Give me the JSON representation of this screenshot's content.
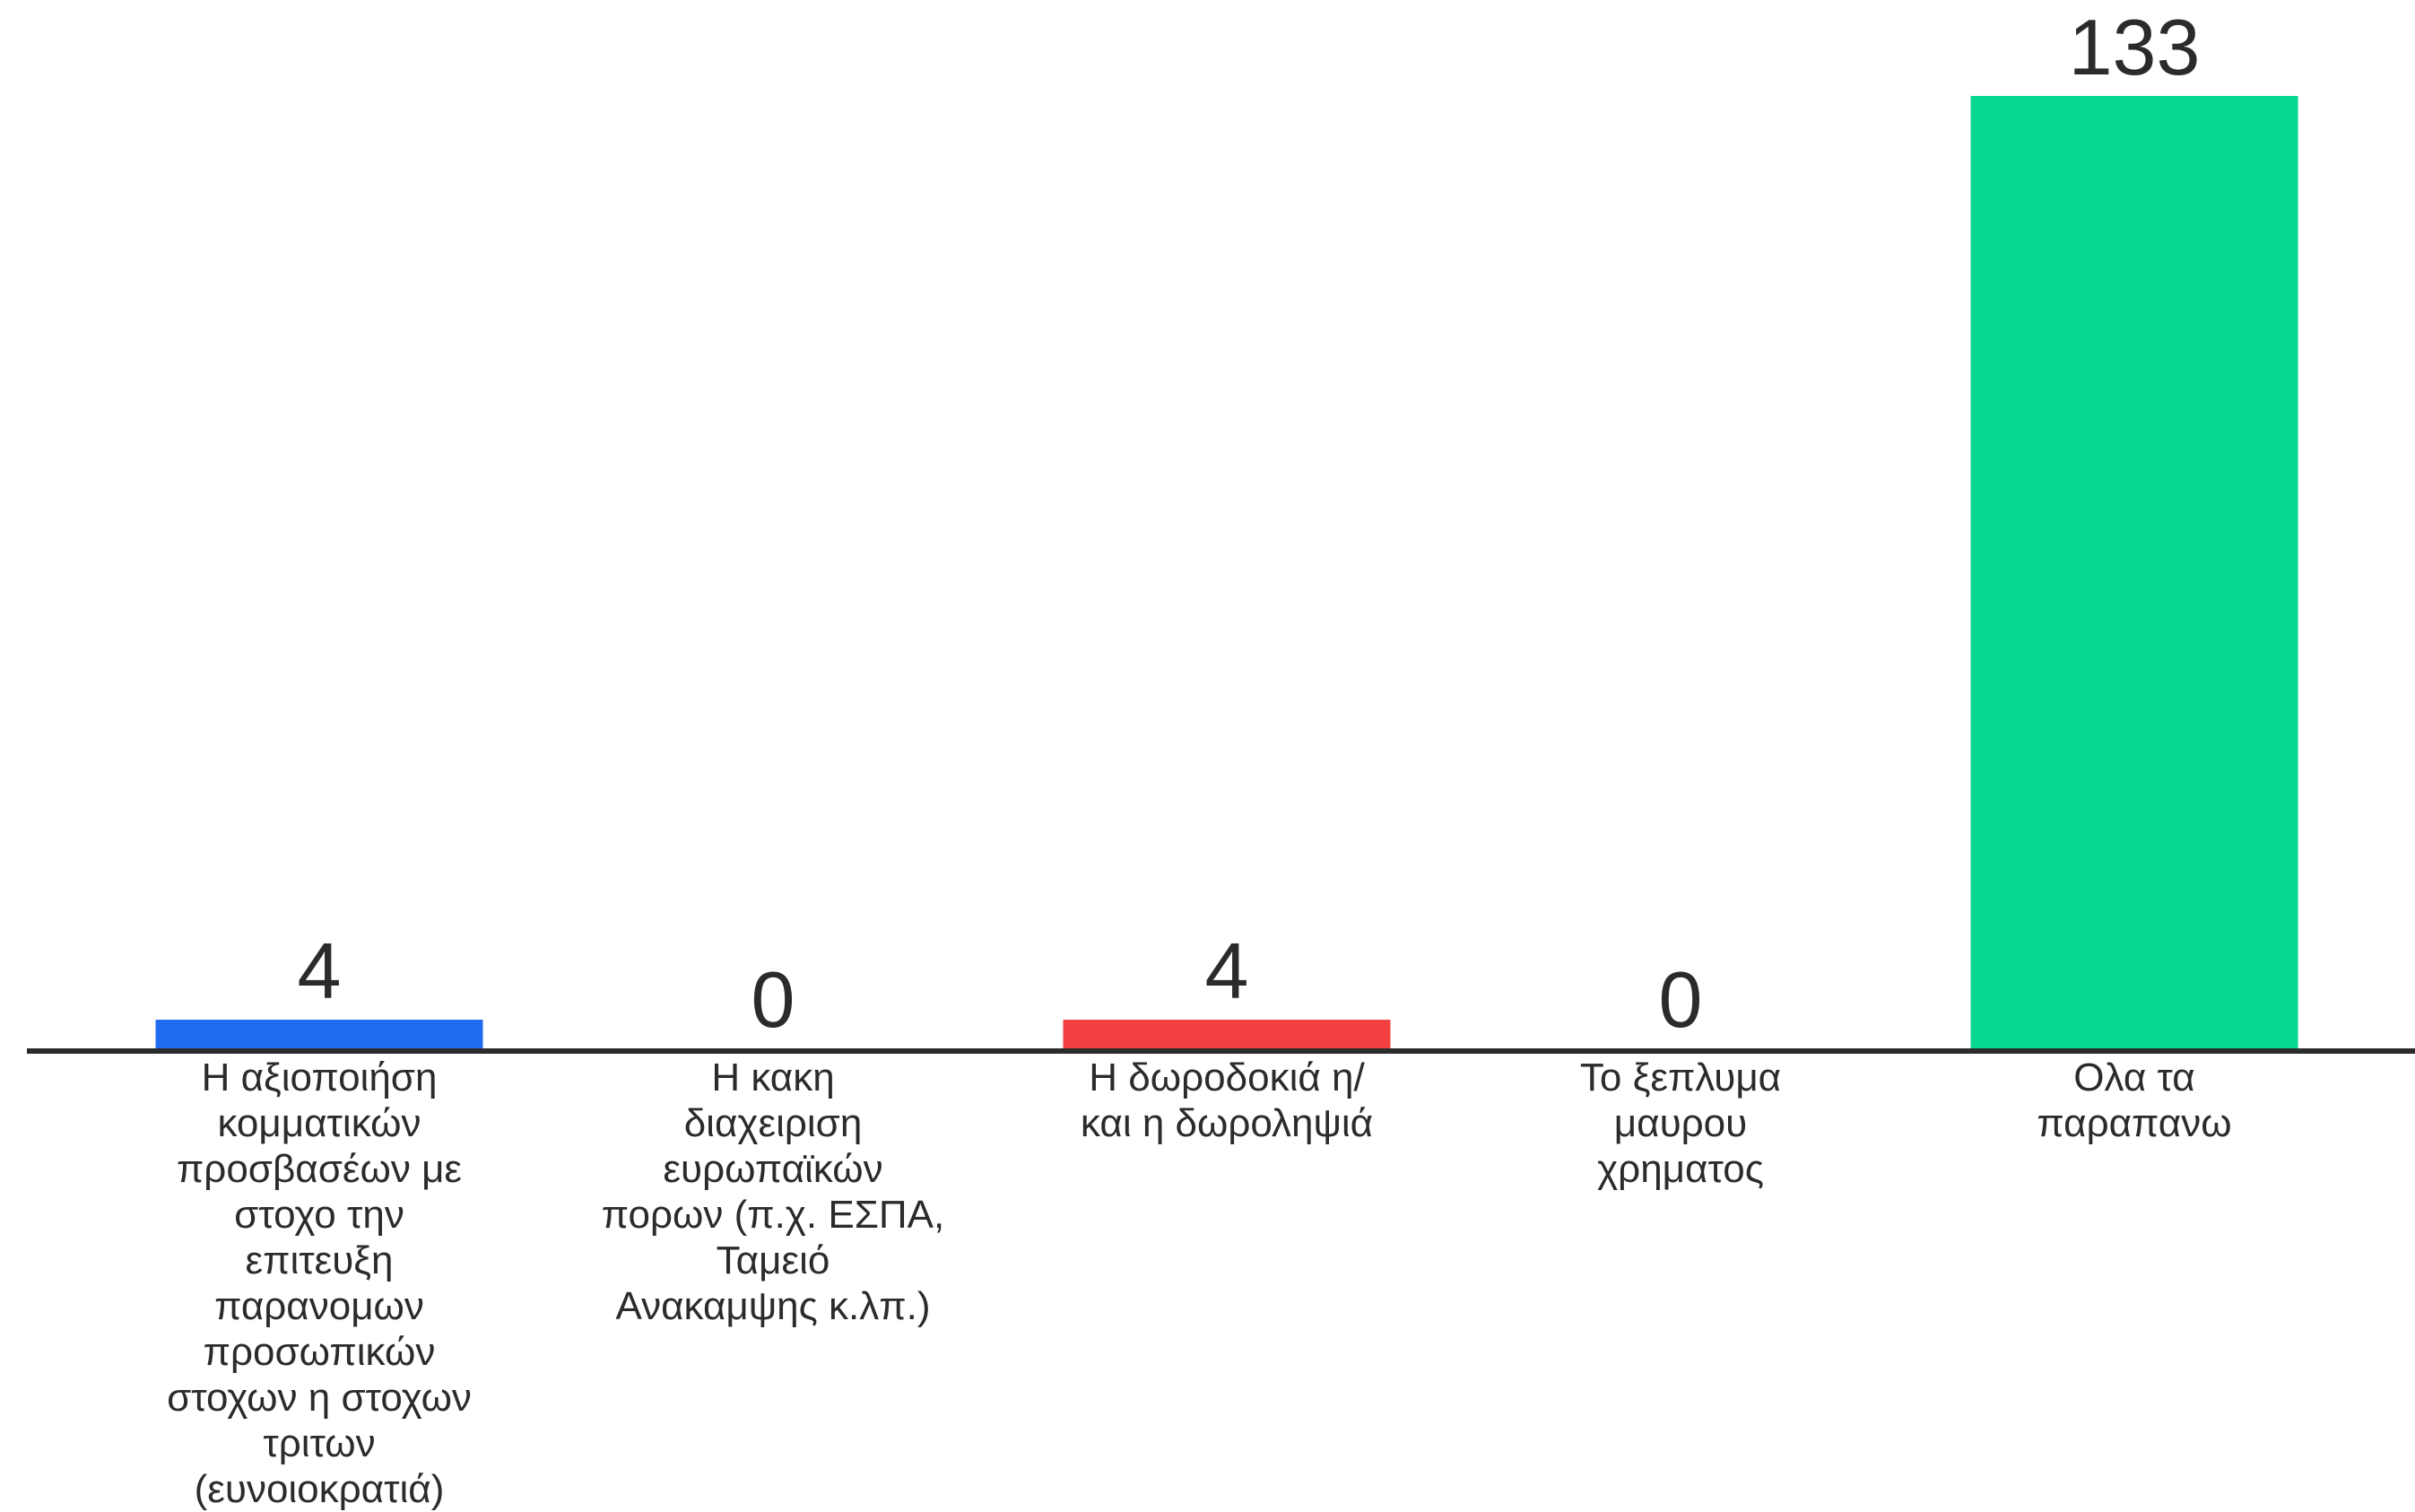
{
  "chart_data": {
    "type": "bar",
    "categories": [
      "Η αξιοποιήση κομματικών προσβασέων με στοχο την επιτευξη παρανομων προσωπικών στοχων η στοχων τριτων (ευνοιοκρατιά)",
      "Η κακη διαχειριση ευρωπαϊκών πορων (π.χ. ΕΣΠΑ, Ταμειό Ανακαμψης κ.λπ.)",
      "Η δωροδοκιά η/ και η δωροληψιά",
      "Το ξεπλυμα μαυρου χρηματος",
      "Ολα τα παραπανω"
    ],
    "category_lines": [
      [
        "Η αξιοποιήση",
        "κομματικών",
        "προσβασέων με",
        "στοχο την",
        "επιτευξη",
        "παρανομων",
        "προσωπικών",
        "στοχων η στοχων",
        "τριτων",
        "(ευνοιοκρατιά)"
      ],
      [
        "Η κακη",
        "διαχειριση",
        "ευρωπαϊκών",
        "πορων (π.χ. ΕΣΠΑ,",
        "Ταμειό",
        "Ανακαμψης κ.λπ.)"
      ],
      [
        "Η δωροδοκιά η/",
        "και η δωροληψιά"
      ],
      [
        "Το ξεπλυμα",
        "μαυρου",
        "χρηματος"
      ],
      [
        "Ολα τα",
        "παραπανω"
      ]
    ],
    "values": [
      4,
      0,
      4,
      0,
      133
    ],
    "value_labels": [
      "4",
      "0",
      "4",
      "0",
      "133"
    ],
    "colors": [
      "#1f6cf0",
      "#1f6cf0",
      "#f24040",
      "#f24040",
      "#05d690"
    ],
    "ylim": [
      0,
      133
    ],
    "grid": false,
    "legend": "none",
    "axis_color": "#2b2b2b"
  }
}
